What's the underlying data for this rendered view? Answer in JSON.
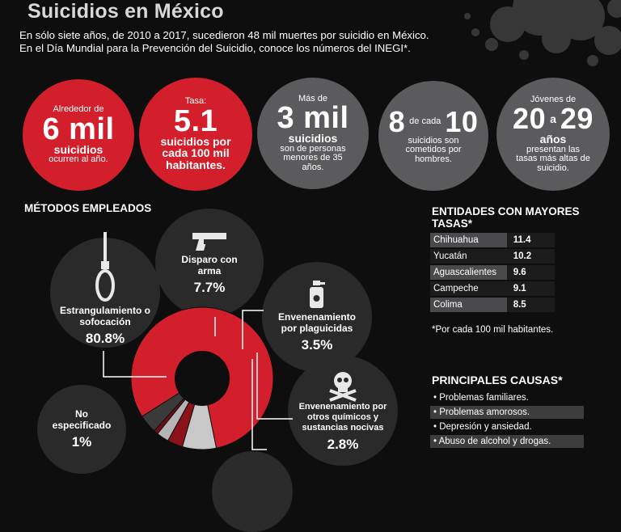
{
  "title": "Suicidios en México",
  "intro": "En sólo siete años, de 2010 a 2017, sucedieron 48 mil muertes por suicidio en México. En el Día Mundial para la Prevención del Suicidio, conoce los números del INEGI*.",
  "stats": {
    "s1": {
      "top": "Alrededor de",
      "big": "6 mil",
      "mid": "suicidios",
      "bottom": "ocurren al año."
    },
    "s2": {
      "top": "Tasa:",
      "big": "5.1",
      "mid": "suicidios por cada 100 mil habitantes."
    },
    "s3": {
      "top": "Más de",
      "big": "3 mil",
      "mid": "suicidios",
      "bottom": "son de personas menores de 35 años."
    },
    "s4": {
      "big_a": "8",
      "small": "de cada",
      "big_b": "10",
      "bottom": "suicidios son cometidos por hombres."
    },
    "s5": {
      "top": "Jóvenes de",
      "big_a": "20",
      "small": "a",
      "big_b": "29",
      "mid": "años",
      "bottom": "presentan las tasas más altas de suicidio."
    }
  },
  "methods_heading": "MÉTODOS EMPLEADOS",
  "methods": [
    {
      "label": "Estrangulamiento o sofocación",
      "pct": "80.8%",
      "icon": "noose-icon"
    },
    {
      "label": "Disparo con arma",
      "pct": "7.7%",
      "icon": "gun-icon"
    },
    {
      "label": "Envenenamiento por plaguicidas",
      "pct": "3.5%",
      "icon": "spray-bottle-icon"
    },
    {
      "label": "Envenenamiento por otros químicos y sustancias nocivas",
      "pct": "2.8%",
      "icon": "skull-crossbones-icon"
    },
    {
      "label": "No especificado",
      "pct": "1%",
      "icon": ""
    }
  ],
  "chart_data": {
    "type": "pie",
    "title": "MÉTODOS EMPLEADOS",
    "categories": [
      "Estrangulamiento o sofocación",
      "Disparo con arma",
      "Envenenamiento por plaguicidas",
      "Envenenamiento por otros químicos y sustancias nocivas",
      "No especificado"
    ],
    "values": [
      80.8,
      7.7,
      3.5,
      2.8,
      1
    ],
    "colors": [
      "#d21f2b",
      "#c8c8c8",
      "#8a1218",
      "#b5b5b5",
      "#6e0e14"
    ]
  },
  "entities": {
    "heading": "ENTIDADES CON MAYORES TASAS*",
    "rows": [
      {
        "name": "Chihuahua",
        "value": "11.4"
      },
      {
        "name": "Yucatán",
        "value": "10.2"
      },
      {
        "name": "Aguascalientes",
        "value": "9.6"
      },
      {
        "name": "Campeche",
        "value": "9.1"
      },
      {
        "name": "Colima",
        "value": "8.5"
      }
    ],
    "note": "*Por cada 100 mil habitantes."
  },
  "causes": {
    "heading": "PRINCIPALES CAUSAS*",
    "items": [
      "• Problemas familiares.",
      "• Problemas amorosos.",
      "• Depresión y ansiedad.",
      "• Abuso de alcohol y drogas."
    ]
  }
}
